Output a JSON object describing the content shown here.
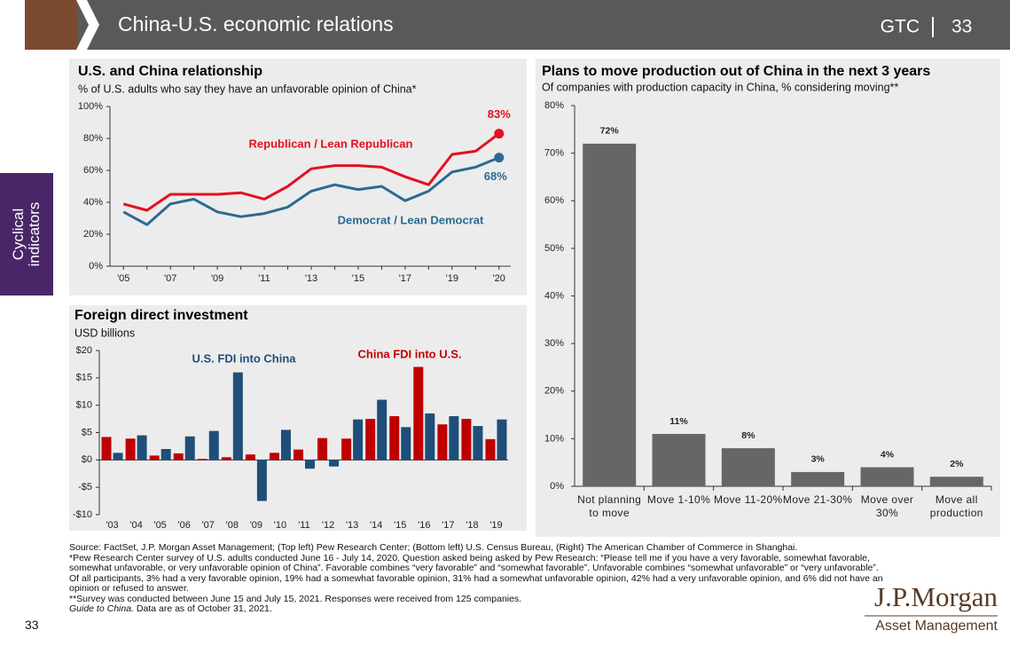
{
  "header": {
    "title": "China-U.S. economic relations",
    "label": "GTC",
    "page": "33"
  },
  "side_tab": "Cyclical indicators",
  "chart_data": [
    {
      "type": "line",
      "title": "U.S. and China relationship",
      "subtitle": "% of U.S. adults who say they have an unfavorable opinion of China*",
      "categories": [
        "'05",
        null,
        "'07",
        null,
        "'09",
        null,
        "'11",
        null,
        "'13",
        null,
        "'15",
        null,
        "'17",
        null,
        "'19",
        null,
        "'20"
      ],
      "series": [
        {
          "name": "Republican / Lean Republican",
          "color": "#e3101f",
          "values": [
            39,
            35,
            45,
            45,
            45,
            46,
            42,
            50,
            61,
            63,
            63,
            62,
            56,
            51,
            70,
            72,
            83
          ],
          "value_labels": [
            null,
            null,
            null,
            null,
            null,
            null,
            null,
            null,
            null,
            null,
            null,
            null,
            null,
            null,
            null,
            null,
            "83%"
          ]
        },
        {
          "name": "Democrat / Lean Democrat",
          "color": "#2b6a94",
          "values": [
            34,
            26,
            39,
            42,
            34,
            31,
            33,
            37,
            47,
            51,
            48,
            50,
            41,
            47,
            59,
            62,
            68
          ],
          "value_labels": [
            null,
            null,
            null,
            null,
            null,
            null,
            null,
            null,
            null,
            null,
            null,
            null,
            null,
            null,
            null,
            null,
            "68%"
          ]
        }
      ],
      "ylim": [
        0,
        100
      ],
      "yticks": [
        {
          "value": 0,
          "label": "0%"
        },
        {
          "value": 20,
          "label": "20%"
        },
        {
          "value": 40,
          "label": "40%"
        },
        {
          "value": 60,
          "label": "60%"
        },
        {
          "value": 80,
          "label": "80%"
        },
        {
          "value": 100,
          "label": "100%"
        }
      ],
      "grid": false
    },
    {
      "type": "bar",
      "title": "Foreign direct investment",
      "subtitle": "USD billions",
      "categories": [
        "'03",
        "'04",
        "'05",
        "'06",
        "'07",
        "'08",
        "'09",
        "'10",
        "'11",
        "'12",
        "'13",
        "'14",
        "'15",
        "'16",
        "'17",
        "'18",
        "'19"
      ],
      "series": [
        {
          "name": "China FDI into U.S.",
          "color": "#c00000",
          "values": [
            4.2,
            3.9,
            0.8,
            1.2,
            0.2,
            0.5,
            1.0,
            1.3,
            1.9,
            4.0,
            3.9,
            7.5,
            8.0,
            17.0,
            6.5,
            7.5,
            3.8
          ]
        },
        {
          "name": "U.S. FDI into China",
          "color": "#1f4e79",
          "values": [
            1.3,
            4.5,
            2.0,
            4.3,
            5.3,
            16.0,
            -7.5,
            5.5,
            -1.6,
            -1.2,
            7.4,
            11.0,
            6.0,
            8.5,
            8.0,
            6.2,
            7.4
          ]
        }
      ],
      "ylim": [
        -10,
        20
      ],
      "yticks": [
        {
          "value": -10,
          "label": "-$10"
        },
        {
          "value": -5,
          "label": "-$5"
        },
        {
          "value": 0,
          "label": "$0"
        },
        {
          "value": 5,
          "label": "$5"
        },
        {
          "value": 10,
          "label": "$10"
        },
        {
          "value": 15,
          "label": "$15"
        },
        {
          "value": 20,
          "label": "$20"
        }
      ],
      "grid": false
    },
    {
      "type": "bar",
      "title": "Plans to move production out of China in the next 3 years",
      "subtitle": "Of companies with production capacity  in China, % considering moving**",
      "categories": [
        "Not planning to move",
        "Move 1-10%",
        "Move 11-20%",
        "Move 21-30%",
        "Move over 30%",
        "Move all production"
      ],
      "values": [
        72,
        11,
        8,
        3,
        4,
        2
      ],
      "value_labels": [
        "72%",
        "11%",
        "8%",
        "3%",
        "4%",
        "2%"
      ],
      "color": "#666666",
      "ylim": [
        0,
        80
      ],
      "yticks": [
        {
          "value": 0,
          "label": "0%"
        },
        {
          "value": 10,
          "label": "10%"
        },
        {
          "value": 20,
          "label": "20%"
        },
        {
          "value": 30,
          "label": "30%"
        },
        {
          "value": 40,
          "label": "40%"
        },
        {
          "value": 50,
          "label": "50%"
        },
        {
          "value": 60,
          "label": "60%"
        },
        {
          "value": 70,
          "label": "70%"
        },
        {
          "value": 80,
          "label": "80%"
        }
      ],
      "grid": false
    }
  ],
  "footnotes": {
    "source": "Source: FactSet, J.P. Morgan Asset Management; (Top left) Pew Research Center; (Bottom left) U.S. Census Bureau, (Right) The American Chamber of Commerce in Shanghai.",
    "note1": "*Pew Research Center survey of U.S. adults conducted June 16 - July 14, 2020. Question asked being asked by Pew Research: “Please tell me if you have a very favorable, somewhat favorable, somewhat unfavorable, or very unfavorable opinion of China”. Favorable combines “very favorable” and “somewhat favorable”. Unfavorable combines “somewhat unfavorable” or “very unfavorable”. Of all participants, 3% had a very favorable opinion, 19% had a somewhat favorable opinion, 31% had a somewhat unfavorable opinion, 42% had a very unfavorable opinion, and 6% did not have an opinion or refused to answer.",
    "note2": "**Survey was conducted between June 15 and July 15, 2021. Responses were received from 125 companies.",
    "guide": "Guide to China.",
    "asof": "Data are as of October 31, 2021."
  },
  "page_number": "33",
  "logo": {
    "name": "J.P.Morgan",
    "tagline": "Asset Management"
  }
}
